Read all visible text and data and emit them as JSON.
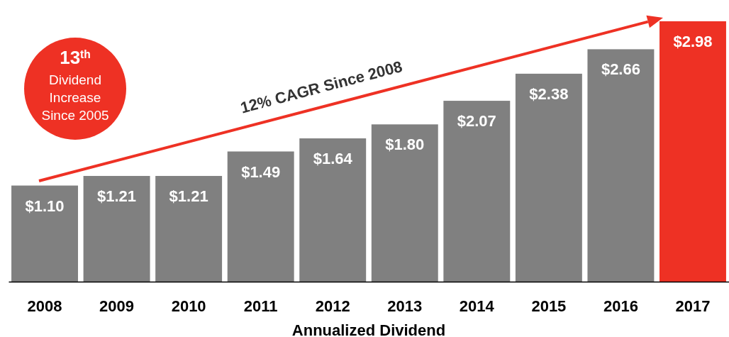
{
  "chart_data": {
    "type": "bar",
    "xlabel": "Annualized Dividend",
    "categories": [
      "2008",
      "2009",
      "2010",
      "2011",
      "2012",
      "2013",
      "2014",
      "2015",
      "2016",
      "2017"
    ],
    "values": [
      1.1,
      1.21,
      1.21,
      1.49,
      1.64,
      1.8,
      2.07,
      2.38,
      2.66,
      2.98
    ],
    "colors": [
      "#808080",
      "#808080",
      "#808080",
      "#808080",
      "#808080",
      "#808080",
      "#808080",
      "#808080",
      "#808080",
      "#ee3124"
    ],
    "value_labels": [
      "$1.10",
      "$1.21",
      "$1.21",
      "$1.49",
      "$1.64",
      "$1.80",
      "$2.07",
      "$2.38",
      "$2.66",
      "$2.98"
    ],
    "annotations": [
      "12% CAGR Since 2008",
      "13$^{th}$",
      "Dividend Increase Since 2005"
    ]
  }
}
